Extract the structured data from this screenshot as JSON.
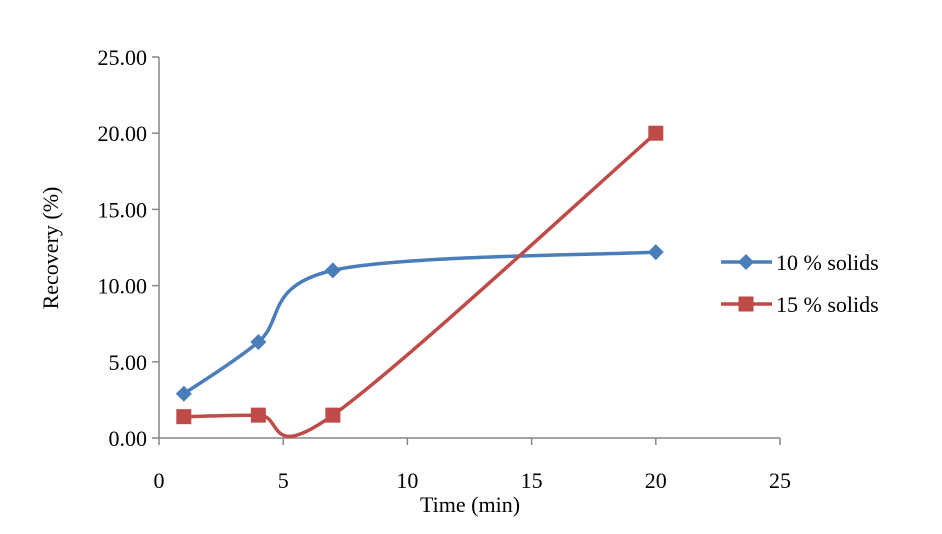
{
  "chart_data": {
    "type": "line",
    "smooth": true,
    "xlabel": "Time (min)",
    "ylabel": "Recovery (%)",
    "xlim": [
      0,
      25
    ],
    "ylim": [
      0,
      25
    ],
    "xticks": [
      "0",
      "5",
      "10",
      "15",
      "20",
      "25"
    ],
    "yticks": [
      "0.00",
      "5.00",
      "10.00",
      "15.00",
      "20.00",
      "25.00"
    ],
    "grid": false,
    "legend_position": "right",
    "series": [
      {
        "name": "10 % solids",
        "color": "#4a7ebb",
        "marker": "diamond",
        "points": [
          [
            1,
            2.9
          ],
          [
            4,
            6.3
          ],
          [
            7,
            11.0
          ],
          [
            20,
            12.2
          ]
        ]
      },
      {
        "name": "15 % solids",
        "color": "#be4b48",
        "marker": "square",
        "points": [
          [
            1,
            1.4
          ],
          [
            4,
            1.5
          ],
          [
            7,
            1.5
          ],
          [
            20,
            20.0
          ]
        ]
      }
    ]
  }
}
